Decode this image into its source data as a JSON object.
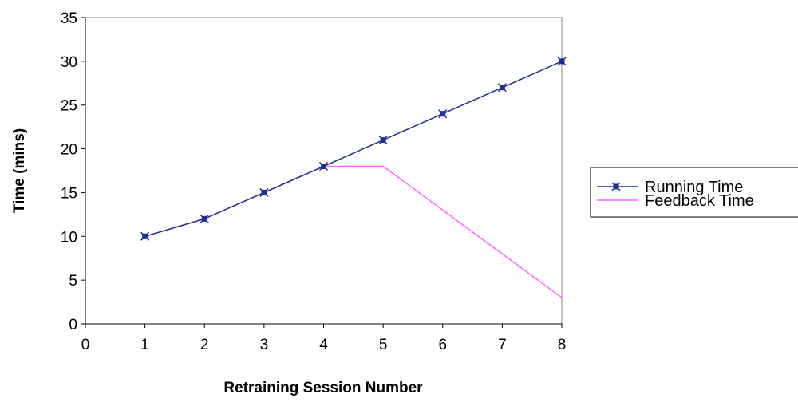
{
  "chart_data": {
    "type": "line",
    "title": "",
    "xlabel": "Retraining Session Number",
    "ylabel": "Time (mins)",
    "xlim": [
      0,
      8
    ],
    "ylim": [
      0,
      35
    ],
    "x_ticks": [
      0,
      1,
      2,
      3,
      4,
      5,
      6,
      7,
      8
    ],
    "y_ticks": [
      0,
      5,
      10,
      15,
      20,
      25,
      30,
      35
    ],
    "grid": false,
    "legend_position": "right",
    "series": [
      {
        "name": "Running Time",
        "color": "#1f2f8f",
        "marker": "star",
        "x": [
          1,
          2,
          3,
          4,
          5,
          6,
          7,
          8
        ],
        "y": [
          10,
          12,
          15,
          18,
          21,
          24,
          27,
          30
        ]
      },
      {
        "name": "Feedback Time",
        "color": "#ff66ff",
        "marker": "none",
        "x": [
          1,
          2,
          3,
          4,
          5,
          6,
          7,
          8
        ],
        "y": [
          10,
          12,
          15,
          18,
          18,
          13,
          8,
          3
        ]
      }
    ]
  }
}
